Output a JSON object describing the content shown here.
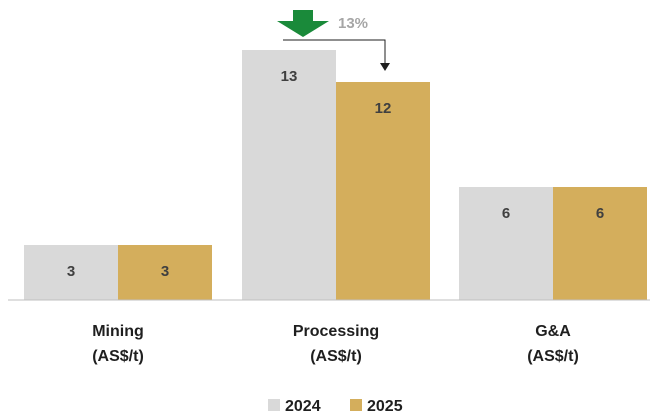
{
  "chart_data": {
    "type": "bar",
    "categories": [
      [
        "Mining",
        "(AS$/t)"
      ],
      [
        "Processing",
        "(AS$/t)"
      ],
      [
        "G&A",
        "(AS$/t)"
      ]
    ],
    "series": [
      {
        "name": "2024",
        "values": [
          3,
          13,
          6
        ],
        "labels": [
          "3",
          "13",
          "6"
        ],
        "color": "#d9d9d9"
      },
      {
        "name": "2025",
        "values": [
          3,
          12,
          6
        ],
        "labels": [
          "3",
          "12",
          "6"
        ],
        "color": "#d4ae5c"
      }
    ],
    "ylim": [
      0,
      13
    ],
    "grid": false,
    "legend": "bottom-center",
    "annotation": {
      "text": "13%",
      "arrow_color": "#1a8a3a",
      "category": "Processing",
      "direction": "down"
    }
  }
}
